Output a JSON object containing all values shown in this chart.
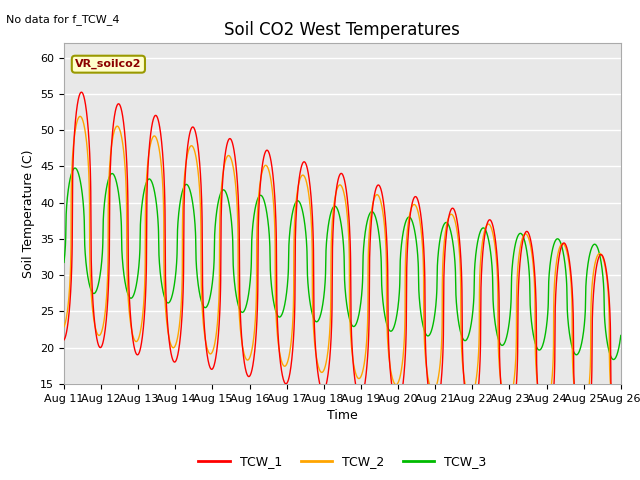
{
  "title": "Soil CO2 West Temperatures",
  "no_data_text": "No data for f_TCW_4",
  "annotation_text": "VR_soilco2",
  "xlabel": "Time",
  "ylabel": "Soil Temperature (C)",
  "ylim": [
    15,
    62
  ],
  "x_tick_labels": [
    "Aug 11",
    "Aug 12",
    "Aug 13",
    "Aug 14",
    "Aug 15",
    "Aug 16",
    "Aug 17",
    "Aug 18",
    "Aug 19",
    "Aug 20",
    "Aug 21",
    "Aug 22",
    "Aug 23",
    "Aug 24",
    "Aug 25",
    "Aug 26"
  ],
  "legend_entries": [
    "TCW_1",
    "TCW_2",
    "TCW_3"
  ],
  "line_colors": [
    "#ff0000",
    "#ffa500",
    "#00bb00"
  ],
  "plot_bg_color": "#e8e8e8",
  "fig_bg_color": "#ffffff",
  "title_fontsize": 12,
  "label_fontsize": 9,
  "tick_fontsize": 8,
  "yticks": [
    15,
    20,
    25,
    30,
    35,
    40,
    45,
    50,
    55,
    60
  ]
}
